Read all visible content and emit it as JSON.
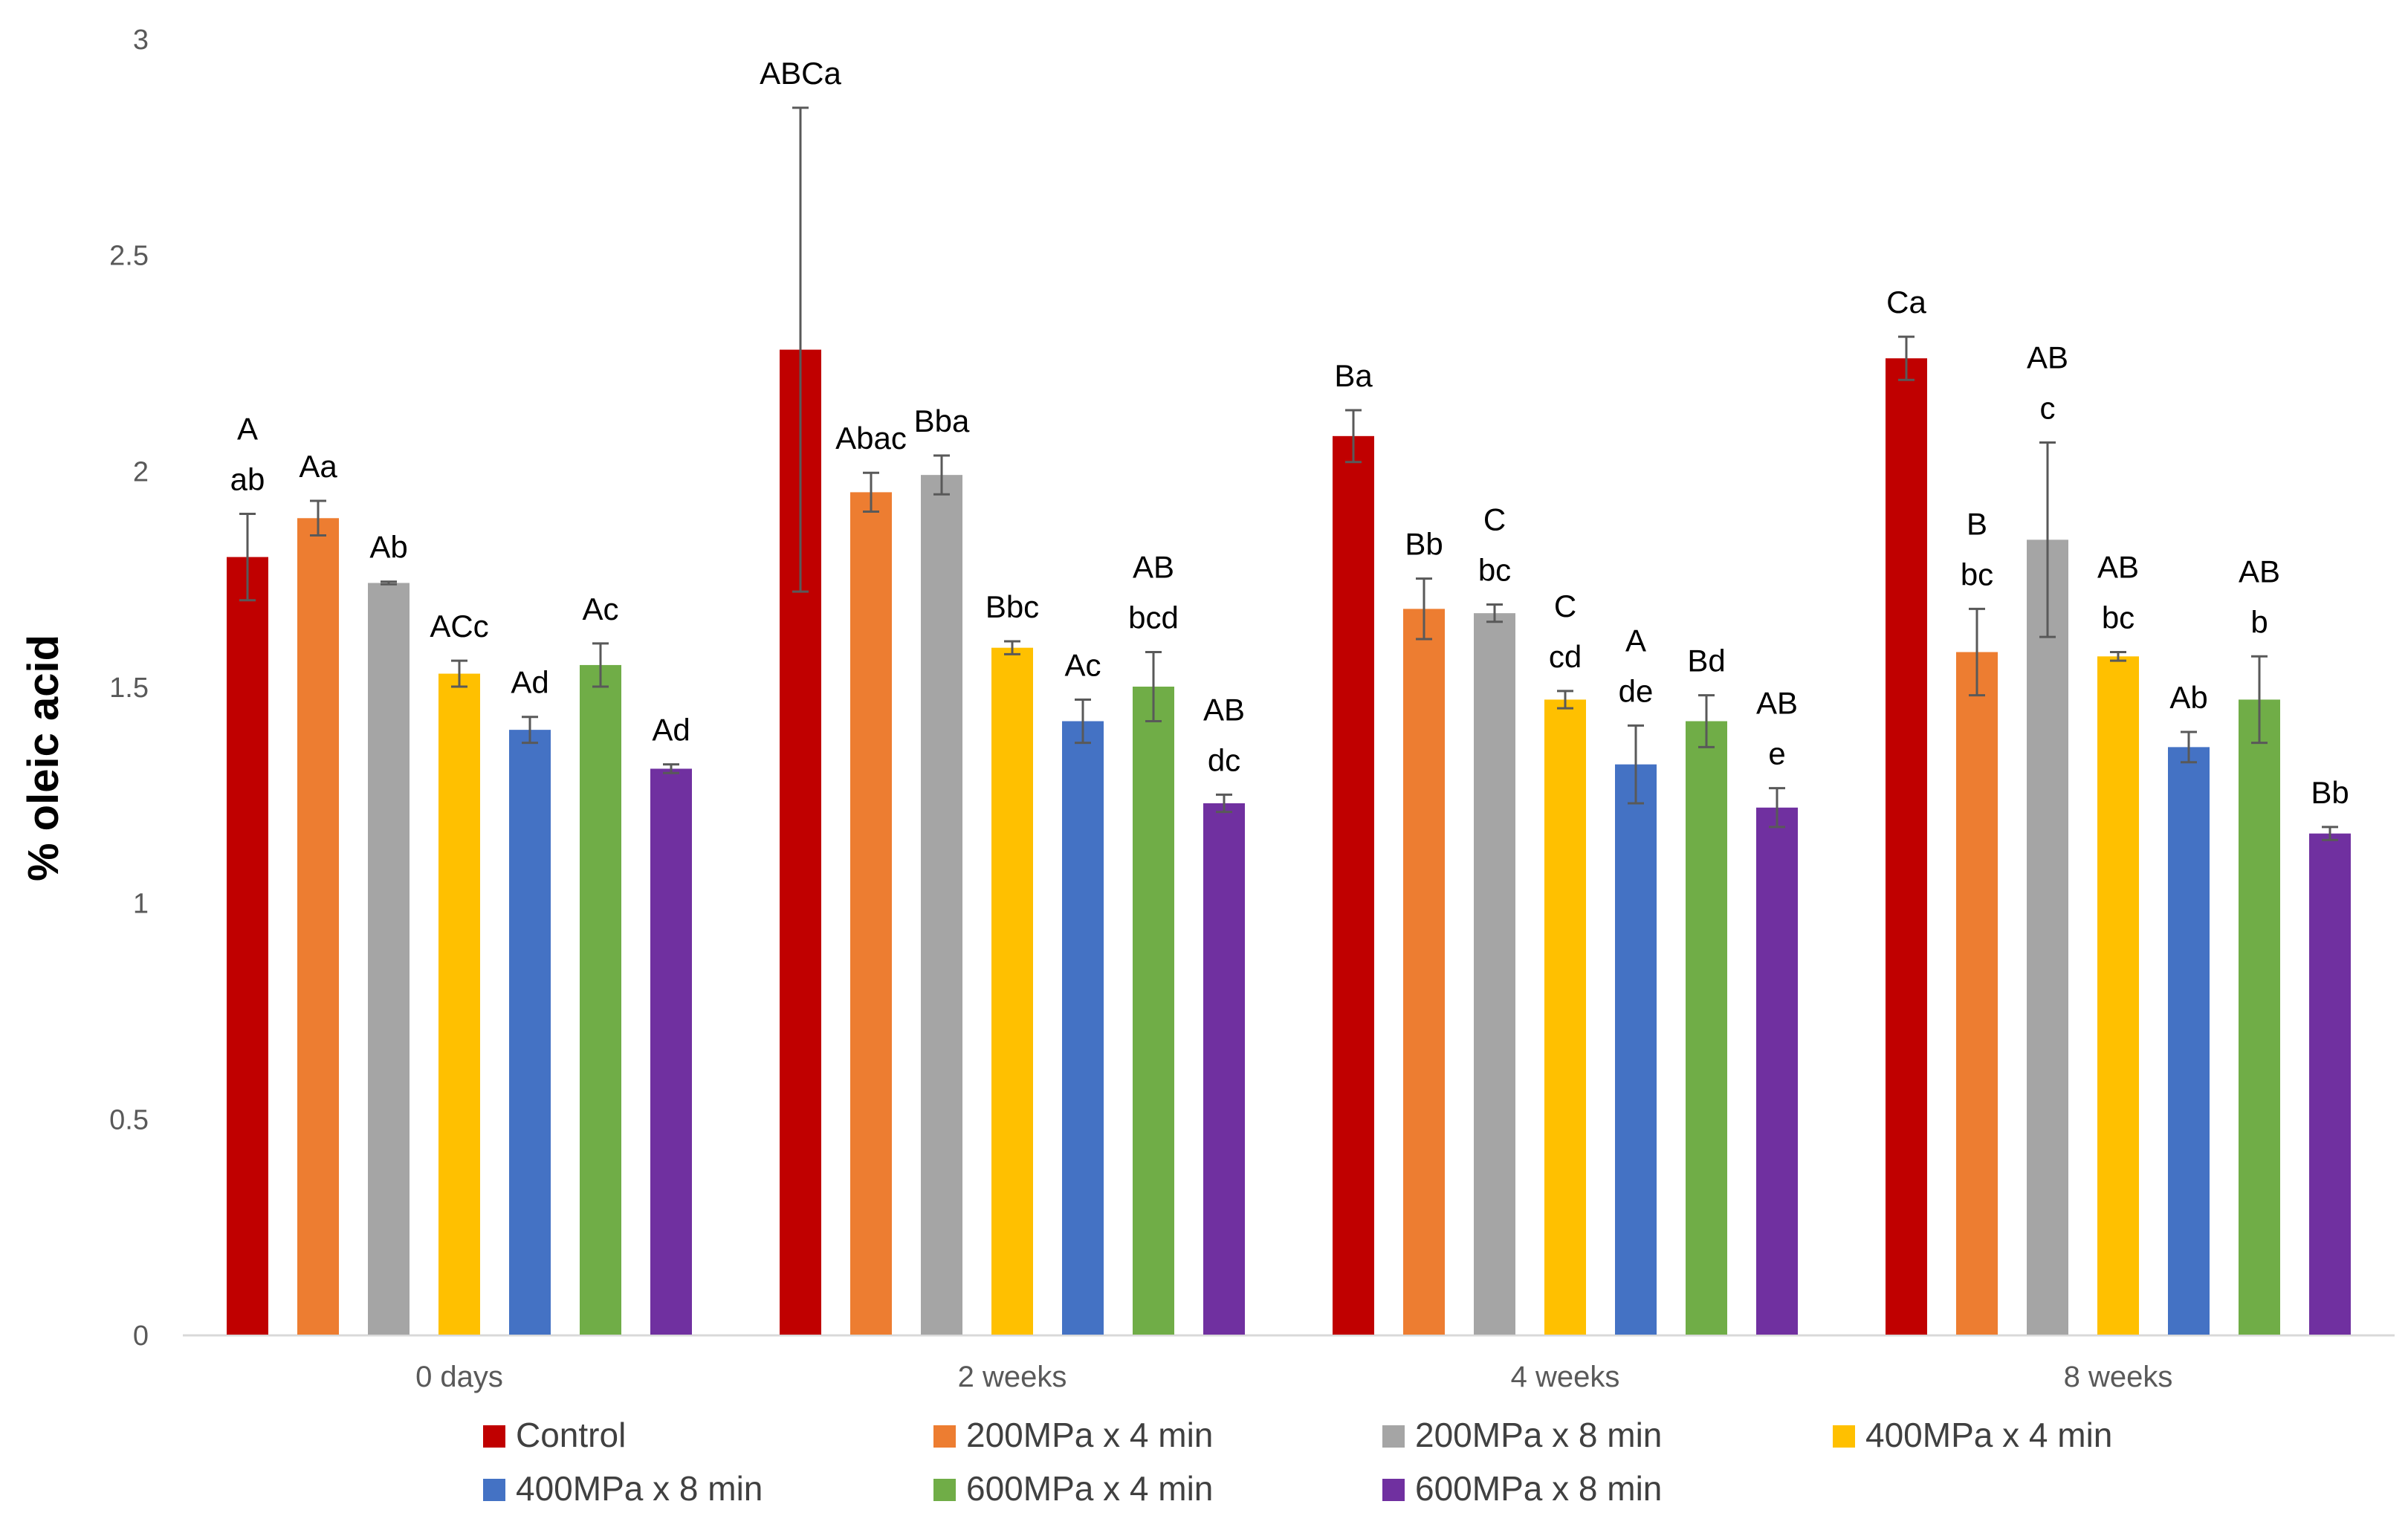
{
  "chart_data": {
    "type": "bar",
    "title": "",
    "xlabel": "",
    "ylabel": "% oleic acid",
    "ylim": [
      0,
      3
    ],
    "yticks": [
      "0",
      "0.5",
      "1",
      "1.5",
      "2",
      "2.5",
      "3"
    ],
    "grid": false,
    "legend_position": "bottom",
    "categories": [
      "0 days",
      "2 weeks",
      "4 weeks",
      "8 weeks"
    ],
    "series": [
      {
        "name": "Control",
        "color": "#C00000",
        "values": [
          1.8,
          2.28,
          2.08,
          2.26
        ],
        "errors": [
          0.1,
          0.56,
          0.06,
          0.05
        ],
        "labels": [
          [
            "A",
            "ab"
          ],
          [
            "ABCa"
          ],
          [
            "Ba"
          ],
          [
            "Ca"
          ]
        ]
      },
      {
        "name": "200MPa x 4 min",
        "color": "#ED7D31",
        "values": [
          1.89,
          1.95,
          1.68,
          1.58
        ],
        "errors": [
          0.04,
          0.045,
          0.07,
          0.1
        ],
        "labels": [
          [
            "Aa"
          ],
          [
            "Abac"
          ],
          [
            "Bb"
          ],
          [
            "B",
            "bc"
          ]
        ]
      },
      {
        "name": "200MPa x 8 min",
        "color": "#A5A5A5",
        "values": [
          1.74,
          1.99,
          1.67,
          1.84
        ],
        "errors": [
          0.003,
          0.045,
          0.02,
          0.225
        ],
        "labels": [
          [
            "Ab"
          ],
          [
            "Bba"
          ],
          [
            "C",
            "bc"
          ],
          [
            "AB",
            "c"
          ]
        ]
      },
      {
        "name": "400MPa x 4 min",
        "color": "#FFC000",
        "values": [
          1.53,
          1.59,
          1.47,
          1.57
        ],
        "errors": [
          0.03,
          0.015,
          0.02,
          0.01
        ],
        "labels": [
          [
            "ACc"
          ],
          [
            "Bbc"
          ],
          [
            "C",
            "cd"
          ],
          [
            "AB",
            "bc"
          ]
        ]
      },
      {
        "name": "400MPa x 8 min",
        "color": "#4472C4",
        "values": [
          1.4,
          1.42,
          1.32,
          1.36
        ],
        "errors": [
          0.03,
          0.05,
          0.09,
          0.035
        ],
        "labels": [
          [
            "Ad"
          ],
          [
            "Ac"
          ],
          [
            "A",
            "de"
          ],
          [
            "Ab"
          ]
        ]
      },
      {
        "name": "600MPa x 4 min",
        "color": "#70AD47",
        "values": [
          1.55,
          1.5,
          1.42,
          1.47
        ],
        "errors": [
          0.05,
          0.08,
          0.06,
          0.1
        ],
        "labels": [
          [
            "Ac"
          ],
          [
            "AB",
            "bcd"
          ],
          [
            "Bd"
          ],
          [
            "AB",
            "b"
          ]
        ]
      },
      {
        "name": "600MPa x 8 min",
        "color": "#7030A0",
        "values": [
          1.31,
          1.23,
          1.22,
          1.16
        ],
        "errors": [
          0.01,
          0.02,
          0.045,
          0.015
        ],
        "labels": [
          [
            "Ad"
          ],
          [
            "AB",
            "dc"
          ],
          [
            "AB",
            "e"
          ],
          [
            "Bb"
          ]
        ]
      }
    ]
  }
}
